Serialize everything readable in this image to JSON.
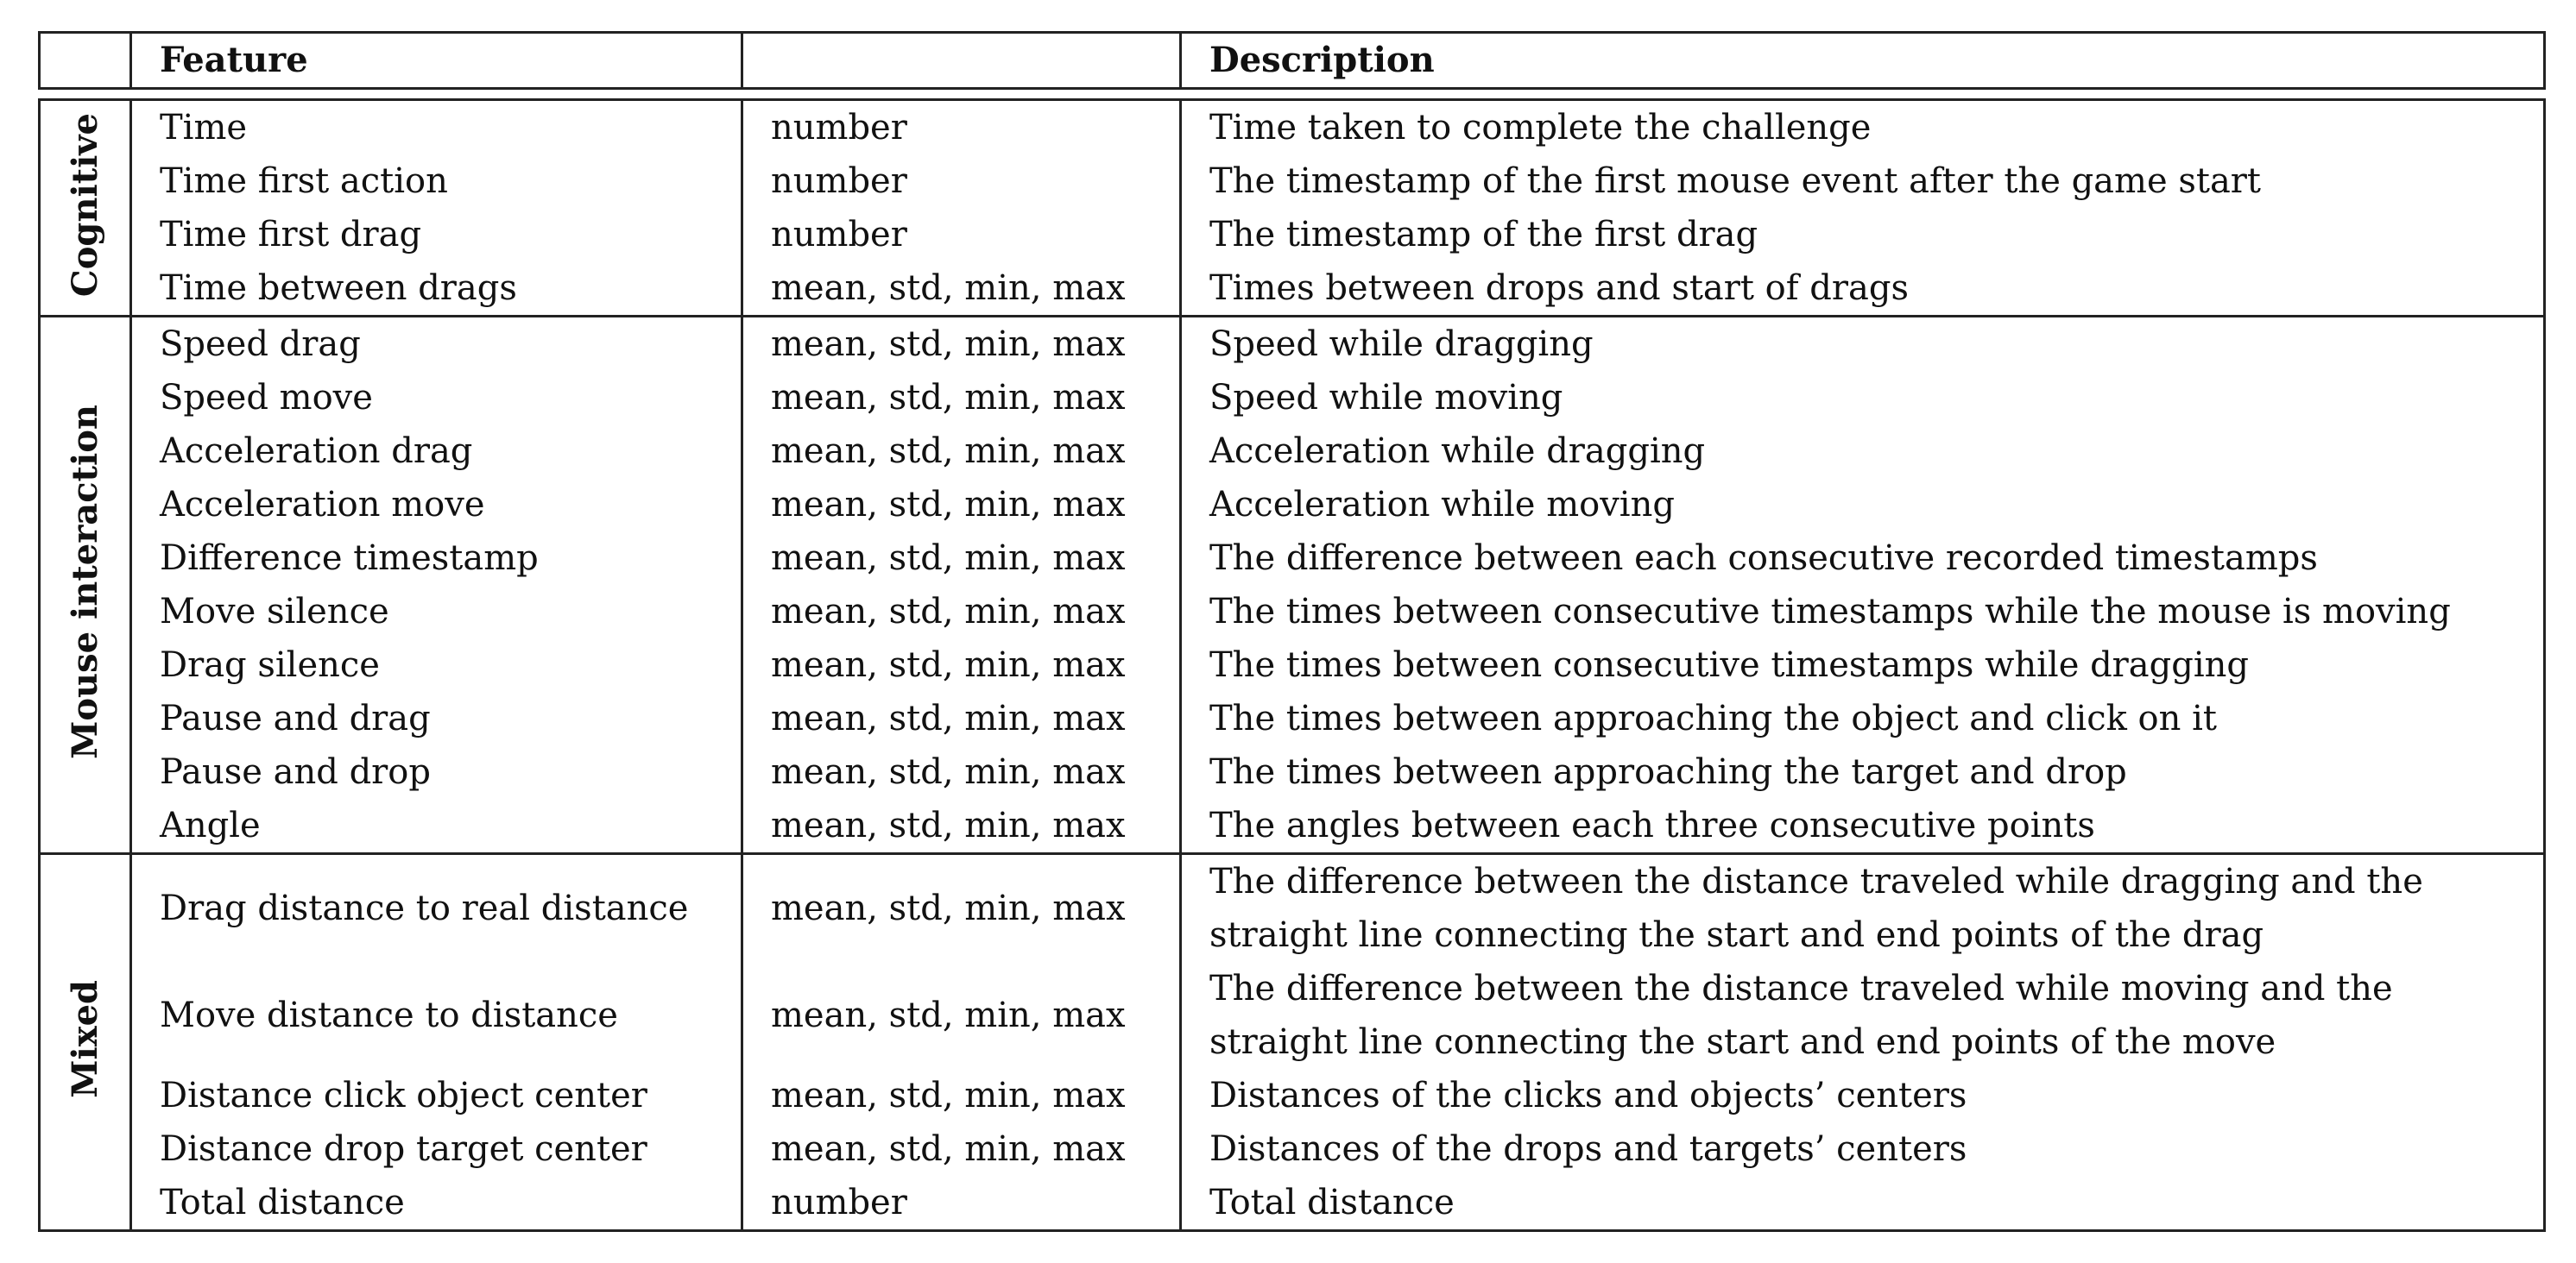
{
  "header": {
    "corner": "",
    "feature": "Feature",
    "type": "",
    "description": "Description"
  },
  "groups": [
    {
      "label": "Cognitive",
      "rows": [
        {
          "feature": "Time",
          "type": "number",
          "description": [
            "Time taken to complete the challenge"
          ]
        },
        {
          "feature": "Time first action",
          "type": "number",
          "description": [
            "The timestamp of the first mouse event after the game start"
          ]
        },
        {
          "feature": "Time first drag",
          "type": "number",
          "description": [
            "The timestamp of the first drag"
          ]
        },
        {
          "feature": "Time between drags",
          "type": "mean, std, min, max",
          "description": [
            "Times between drops and start of drags"
          ]
        }
      ]
    },
    {
      "label": "Mouse interaction",
      "rows": [
        {
          "feature": "Speed drag",
          "type": "mean, std, min, max",
          "description": [
            "Speed while dragging"
          ]
        },
        {
          "feature": "Speed move",
          "type": "mean, std, min, max",
          "description": [
            "Speed while moving"
          ]
        },
        {
          "feature": "Acceleration drag",
          "type": "mean, std, min, max",
          "description": [
            "Acceleration while dragging"
          ]
        },
        {
          "feature": "Acceleration move",
          "type": "mean, std, min, max",
          "description": [
            "Acceleration while moving"
          ]
        },
        {
          "feature": "Difference timestamp",
          "type": "mean, std, min, max",
          "description": [
            "The difference between each consecutive recorded timestamps"
          ]
        },
        {
          "feature": "Move silence",
          "type": "mean, std, min, max",
          "description": [
            "The times between consecutive timestamps while the mouse is moving"
          ]
        },
        {
          "feature": "Drag silence",
          "type": "mean, std, min, max",
          "description": [
            "The times between consecutive timestamps while dragging"
          ]
        },
        {
          "feature": "Pause and drag",
          "type": "mean, std, min, max",
          "description": [
            "The times between approaching the object and click on it"
          ]
        },
        {
          "feature": "Pause and drop",
          "type": "mean, std, min, max",
          "description": [
            "The times between approaching the target and drop"
          ]
        },
        {
          "feature": "Angle",
          "type": "mean, std, min, max",
          "description": [
            "The angles between each three consecutive points"
          ]
        }
      ]
    },
    {
      "label": "Mixed",
      "rows": [
        {
          "feature": "Drag distance to real distance",
          "type": "mean, std, min, max",
          "description": [
            "The difference between the distance traveled while dragging and the",
            "straight line connecting the start and end points of the drag"
          ]
        },
        {
          "feature": "Move distance to distance",
          "type": "mean, std, min, max",
          "description": [
            "The difference between the distance traveled while moving and the",
            "straight line connecting the start and end points of the move"
          ]
        },
        {
          "feature": "Distance click object center",
          "type": "mean, std, min, max",
          "description": [
            "Distances of the clicks and objects’ centers"
          ]
        },
        {
          "feature": "Distance drop target center",
          "type": "mean, std, min, max",
          "description": [
            "Distances of the drops and targets’ centers"
          ]
        },
        {
          "feature": "Total distance",
          "type": "number",
          "description": [
            "Total distance"
          ]
        }
      ]
    }
  ]
}
